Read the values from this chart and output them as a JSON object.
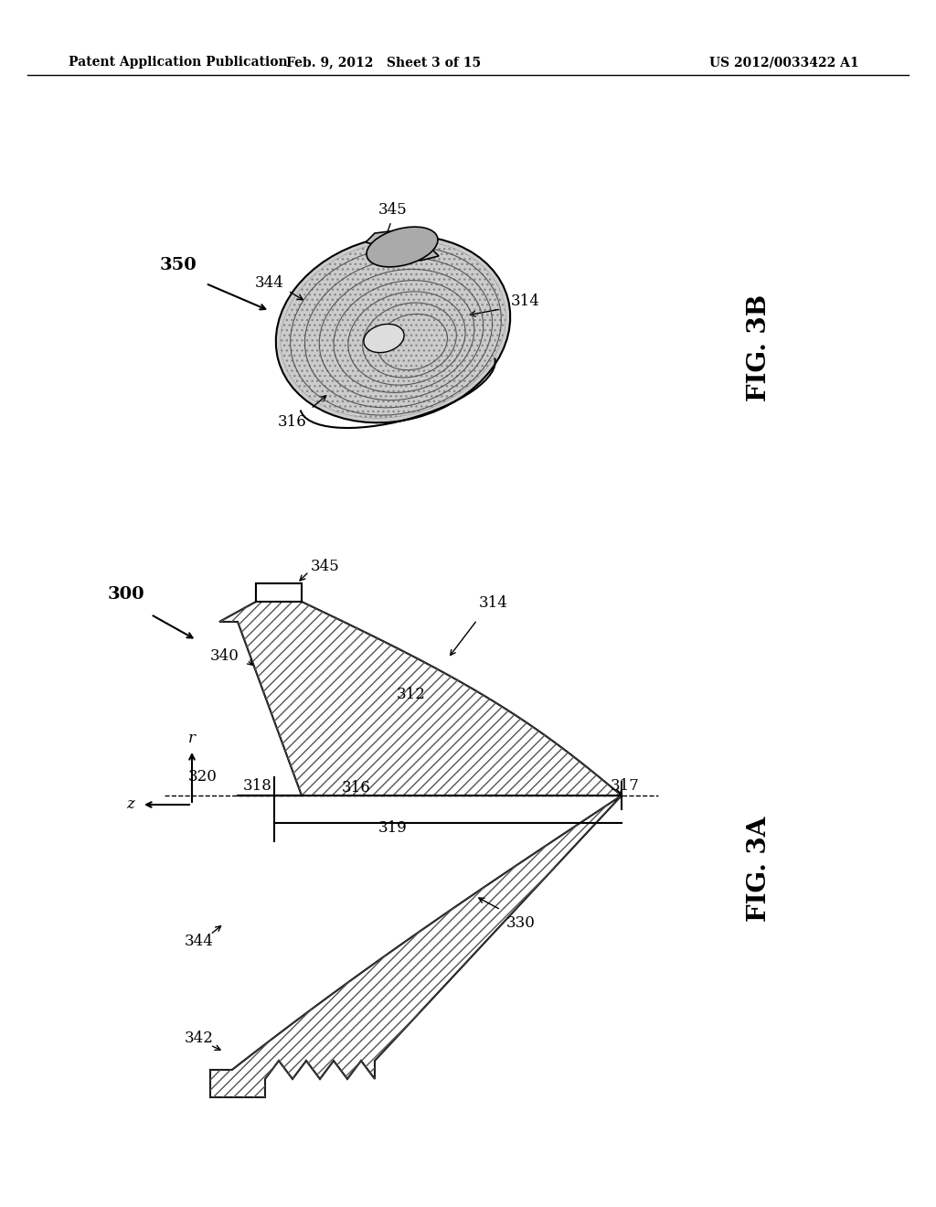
{
  "bg_color": "#ffffff",
  "header_left": "Patent Application Publication",
  "header_mid": "Feb. 9, 2012   Sheet 3 of 15",
  "header_right": "US 2012/0033422 A1",
  "fig3b_label": "FIG. 3B",
  "fig3a_label": "FIG. 3A",
  "label_350": "350",
  "label_345_top": "345",
  "label_344": "344",
  "label_314_3b": "314",
  "label_316_3b": "316",
  "label_300": "300",
  "label_345": "345",
  "label_340": "340",
  "label_314": "314",
  "label_312": "312",
  "label_320": "320",
  "label_318": "318",
  "label_316": "316",
  "label_317": "317",
  "label_319": "319",
  "label_330": "330",
  "label_344_bot": "344",
  "label_342": "342",
  "line_color": "#000000",
  "hatch_color": "#000000",
  "hatch_pattern": "///"
}
